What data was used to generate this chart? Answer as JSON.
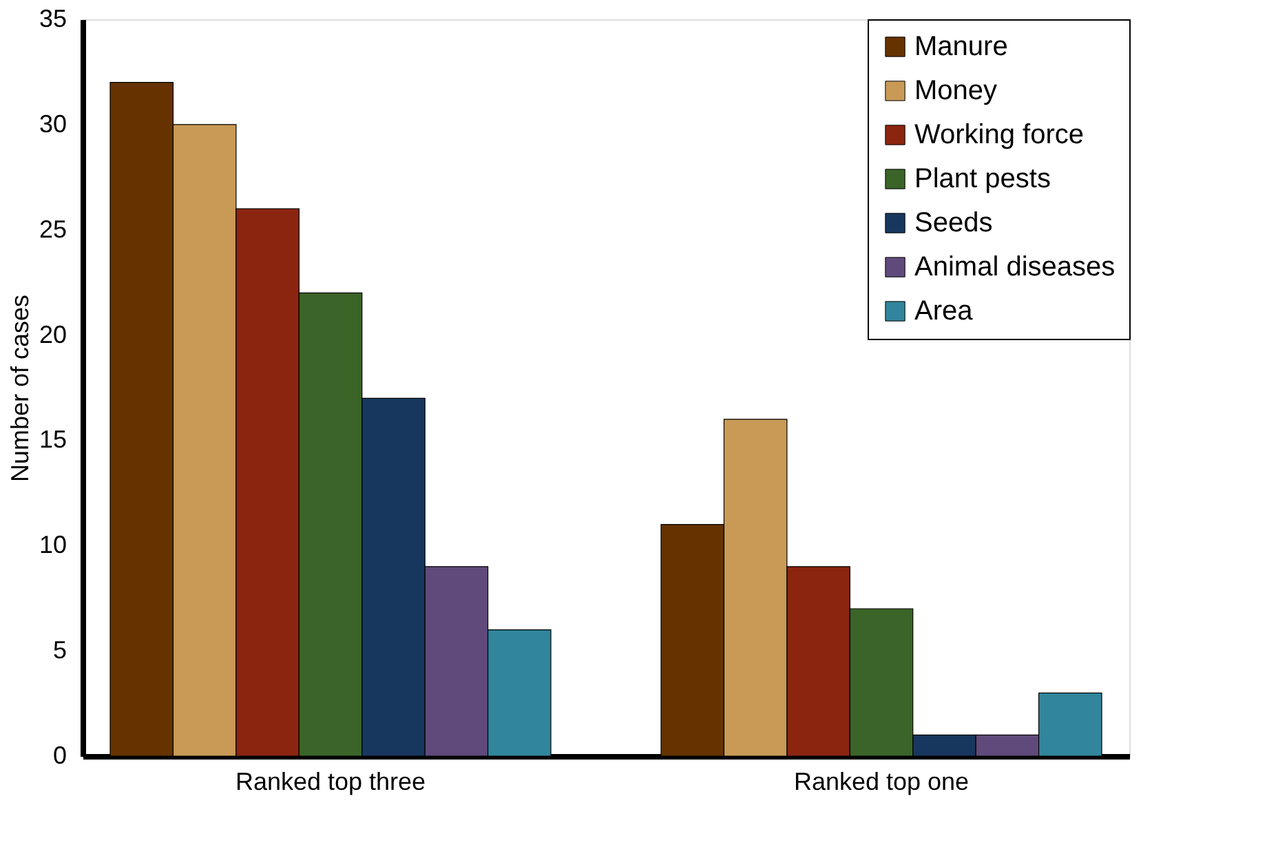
{
  "chart_data": {
    "type": "bar",
    "ylabel": "Number of cases",
    "categories": [
      "Ranked top three",
      "Ranked top one"
    ],
    "series": [
      {
        "name": "Manure",
        "color": "#663300",
        "values": [
          32,
          11
        ]
      },
      {
        "name": "Money",
        "color": "#c89a55",
        "values": [
          30,
          16
        ]
      },
      {
        "name": "Working force",
        "color": "#8b2510",
        "values": [
          26,
          9
        ]
      },
      {
        "name": "Plant pests",
        "color": "#3a6428",
        "values": [
          22,
          7
        ]
      },
      {
        "name": "Seeds",
        "color": "#17375e",
        "values": [
          17,
          1
        ]
      },
      {
        "name": "Animal diseases",
        "color": "#604a7b",
        "values": [
          9,
          1
        ]
      },
      {
        "name": "Area",
        "color": "#31859c",
        "values": [
          6,
          3
        ]
      }
    ],
    "ylim": [
      0,
      35
    ],
    "yticks": [
      0,
      5,
      10,
      15,
      20,
      25,
      30,
      35
    ],
    "grid": false,
    "legend": "top right"
  }
}
